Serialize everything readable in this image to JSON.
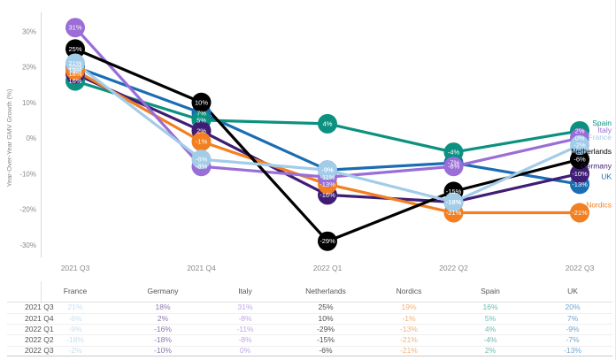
{
  "chart_data": {
    "type": "line",
    "title": "",
    "ylabel": "Year-Over-Year GMV Growth (%)",
    "xlabel": "",
    "unit": "%",
    "x": [
      "2021 Q3",
      "2021 Q4",
      "2022 Q1",
      "2022 Q2",
      "2022 Q3"
    ],
    "y_ticks": [
      30,
      20,
      10,
      0,
      -10,
      -20,
      -30
    ],
    "ylim": [
      -33,
      34
    ],
    "grid": "none",
    "legend_position": "right-end-labels",
    "series": [
      {
        "name": "France",
        "color": "#A3CCE9",
        "values": [
          21,
          -6,
          -9,
          -18,
          -2
        ]
      },
      {
        "name": "Germany",
        "color": "#3F1D75",
        "values": [
          18,
          2,
          -16,
          -18,
          -10
        ]
      },
      {
        "name": "Italy",
        "color": "#9A6DD7",
        "values": [
          31,
          -8,
          -11,
          -8,
          0
        ]
      },
      {
        "name": "Netherlands",
        "color": "#000000",
        "values": [
          25,
          10,
          -29,
          -15,
          -6
        ]
      },
      {
        "name": "Nordics",
        "color": "#F28022",
        "values": [
          19,
          -1,
          -13,
          -21,
          -21
        ]
      },
      {
        "name": "Spain",
        "color": "#0C9180",
        "values": [
          16,
          5,
          4,
          -4,
          2
        ]
      },
      {
        "name": "UK",
        "color": "#1A6DB3",
        "values": [
          20,
          7,
          -9,
          -7,
          -13
        ]
      }
    ],
    "z_order": [
      "UK",
      "Spain",
      "Germany",
      "Nordics",
      "Italy",
      "Netherlands",
      "France"
    ]
  },
  "table": {
    "columns": [
      "France",
      "Germany",
      "Italy",
      "Netherlands",
      "Nordics",
      "Spain",
      "UK"
    ],
    "row_labels": [
      "2021 Q3",
      "2021 Q4",
      "2022 Q1",
      "2022 Q2",
      "2022 Q3"
    ],
    "rows": [
      [
        "21%",
        "18%",
        "31%",
        "25%",
        "19%",
        "16%",
        "20%"
      ],
      [
        "-6%",
        "2%",
        "-8%",
        "10%",
        "-1%",
        "5%",
        "7%"
      ],
      [
        "-9%",
        "-16%",
        "-11%",
        "-29%",
        "-13%",
        "4%",
        "-9%"
      ],
      [
        "-18%",
        "-18%",
        "-8%",
        "-15%",
        "-21%",
        "-4%",
        "-7%"
      ],
      [
        "-2%",
        "-10%",
        "0%",
        "-6%",
        "-21%",
        "2%",
        "-13%"
      ]
    ]
  }
}
